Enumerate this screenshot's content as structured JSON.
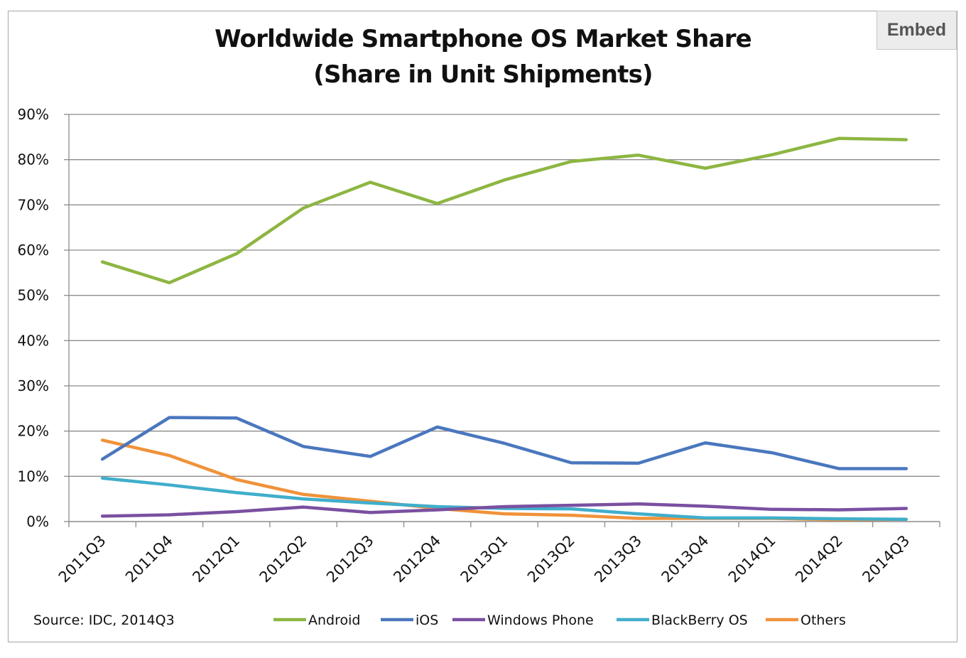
{
  "embed_label": "Embed",
  "source_text": "Source: IDC, 2014Q3",
  "chart_data": {
    "type": "line",
    "title": "Worldwide Smartphone OS Market Share",
    "subtitle": "(Share in Unit Shipments)",
    "xlabel": "",
    "ylabel": "",
    "ylim": [
      0,
      90
    ],
    "yticks": [
      "0%",
      "10%",
      "20%",
      "30%",
      "40%",
      "50%",
      "60%",
      "70%",
      "80%",
      "90%"
    ],
    "grid": true,
    "legend_position": "bottom",
    "categories": [
      "2011Q3",
      "2011Q4",
      "2012Q1",
      "2012Q2",
      "2012Q3",
      "2012Q4",
      "2013Q1",
      "2013Q2",
      "2013Q3",
      "2013Q4",
      "2014Q1",
      "2014Q2",
      "2014Q3"
    ],
    "series": [
      {
        "name": "Android",
        "color": "#8db642",
        "values": [
          57.4,
          52.8,
          59.2,
          69.3,
          75.0,
          70.3,
          75.5,
          79.6,
          81.0,
          78.1,
          81.1,
          84.7,
          84.4
        ]
      },
      {
        "name": "iOS",
        "color": "#4a77be",
        "values": [
          13.8,
          23.0,
          22.9,
          16.6,
          14.4,
          20.9,
          17.3,
          13.0,
          12.9,
          17.4,
          15.2,
          11.7,
          11.7
        ]
      },
      {
        "name": "Windows Phone",
        "color": "#7a50a0",
        "values": [
          1.2,
          1.5,
          2.2,
          3.2,
          2.0,
          2.6,
          3.3,
          3.6,
          3.9,
          3.4,
          2.7,
          2.6,
          2.9
        ]
      },
      {
        "name": "BlackBerry OS",
        "color": "#40aecb",
        "values": [
          9.6,
          8.1,
          6.4,
          5.0,
          4.1,
          3.3,
          2.9,
          2.8,
          1.7,
          0.8,
          0.8,
          0.6,
          0.5
        ]
      },
      {
        "name": "Others",
        "color": "#f0923a",
        "values": [
          18.0,
          14.6,
          9.3,
          6.0,
          4.5,
          2.9,
          1.7,
          1.4,
          0.7,
          0.7,
          0.7,
          0.4,
          0.5
        ]
      }
    ]
  }
}
